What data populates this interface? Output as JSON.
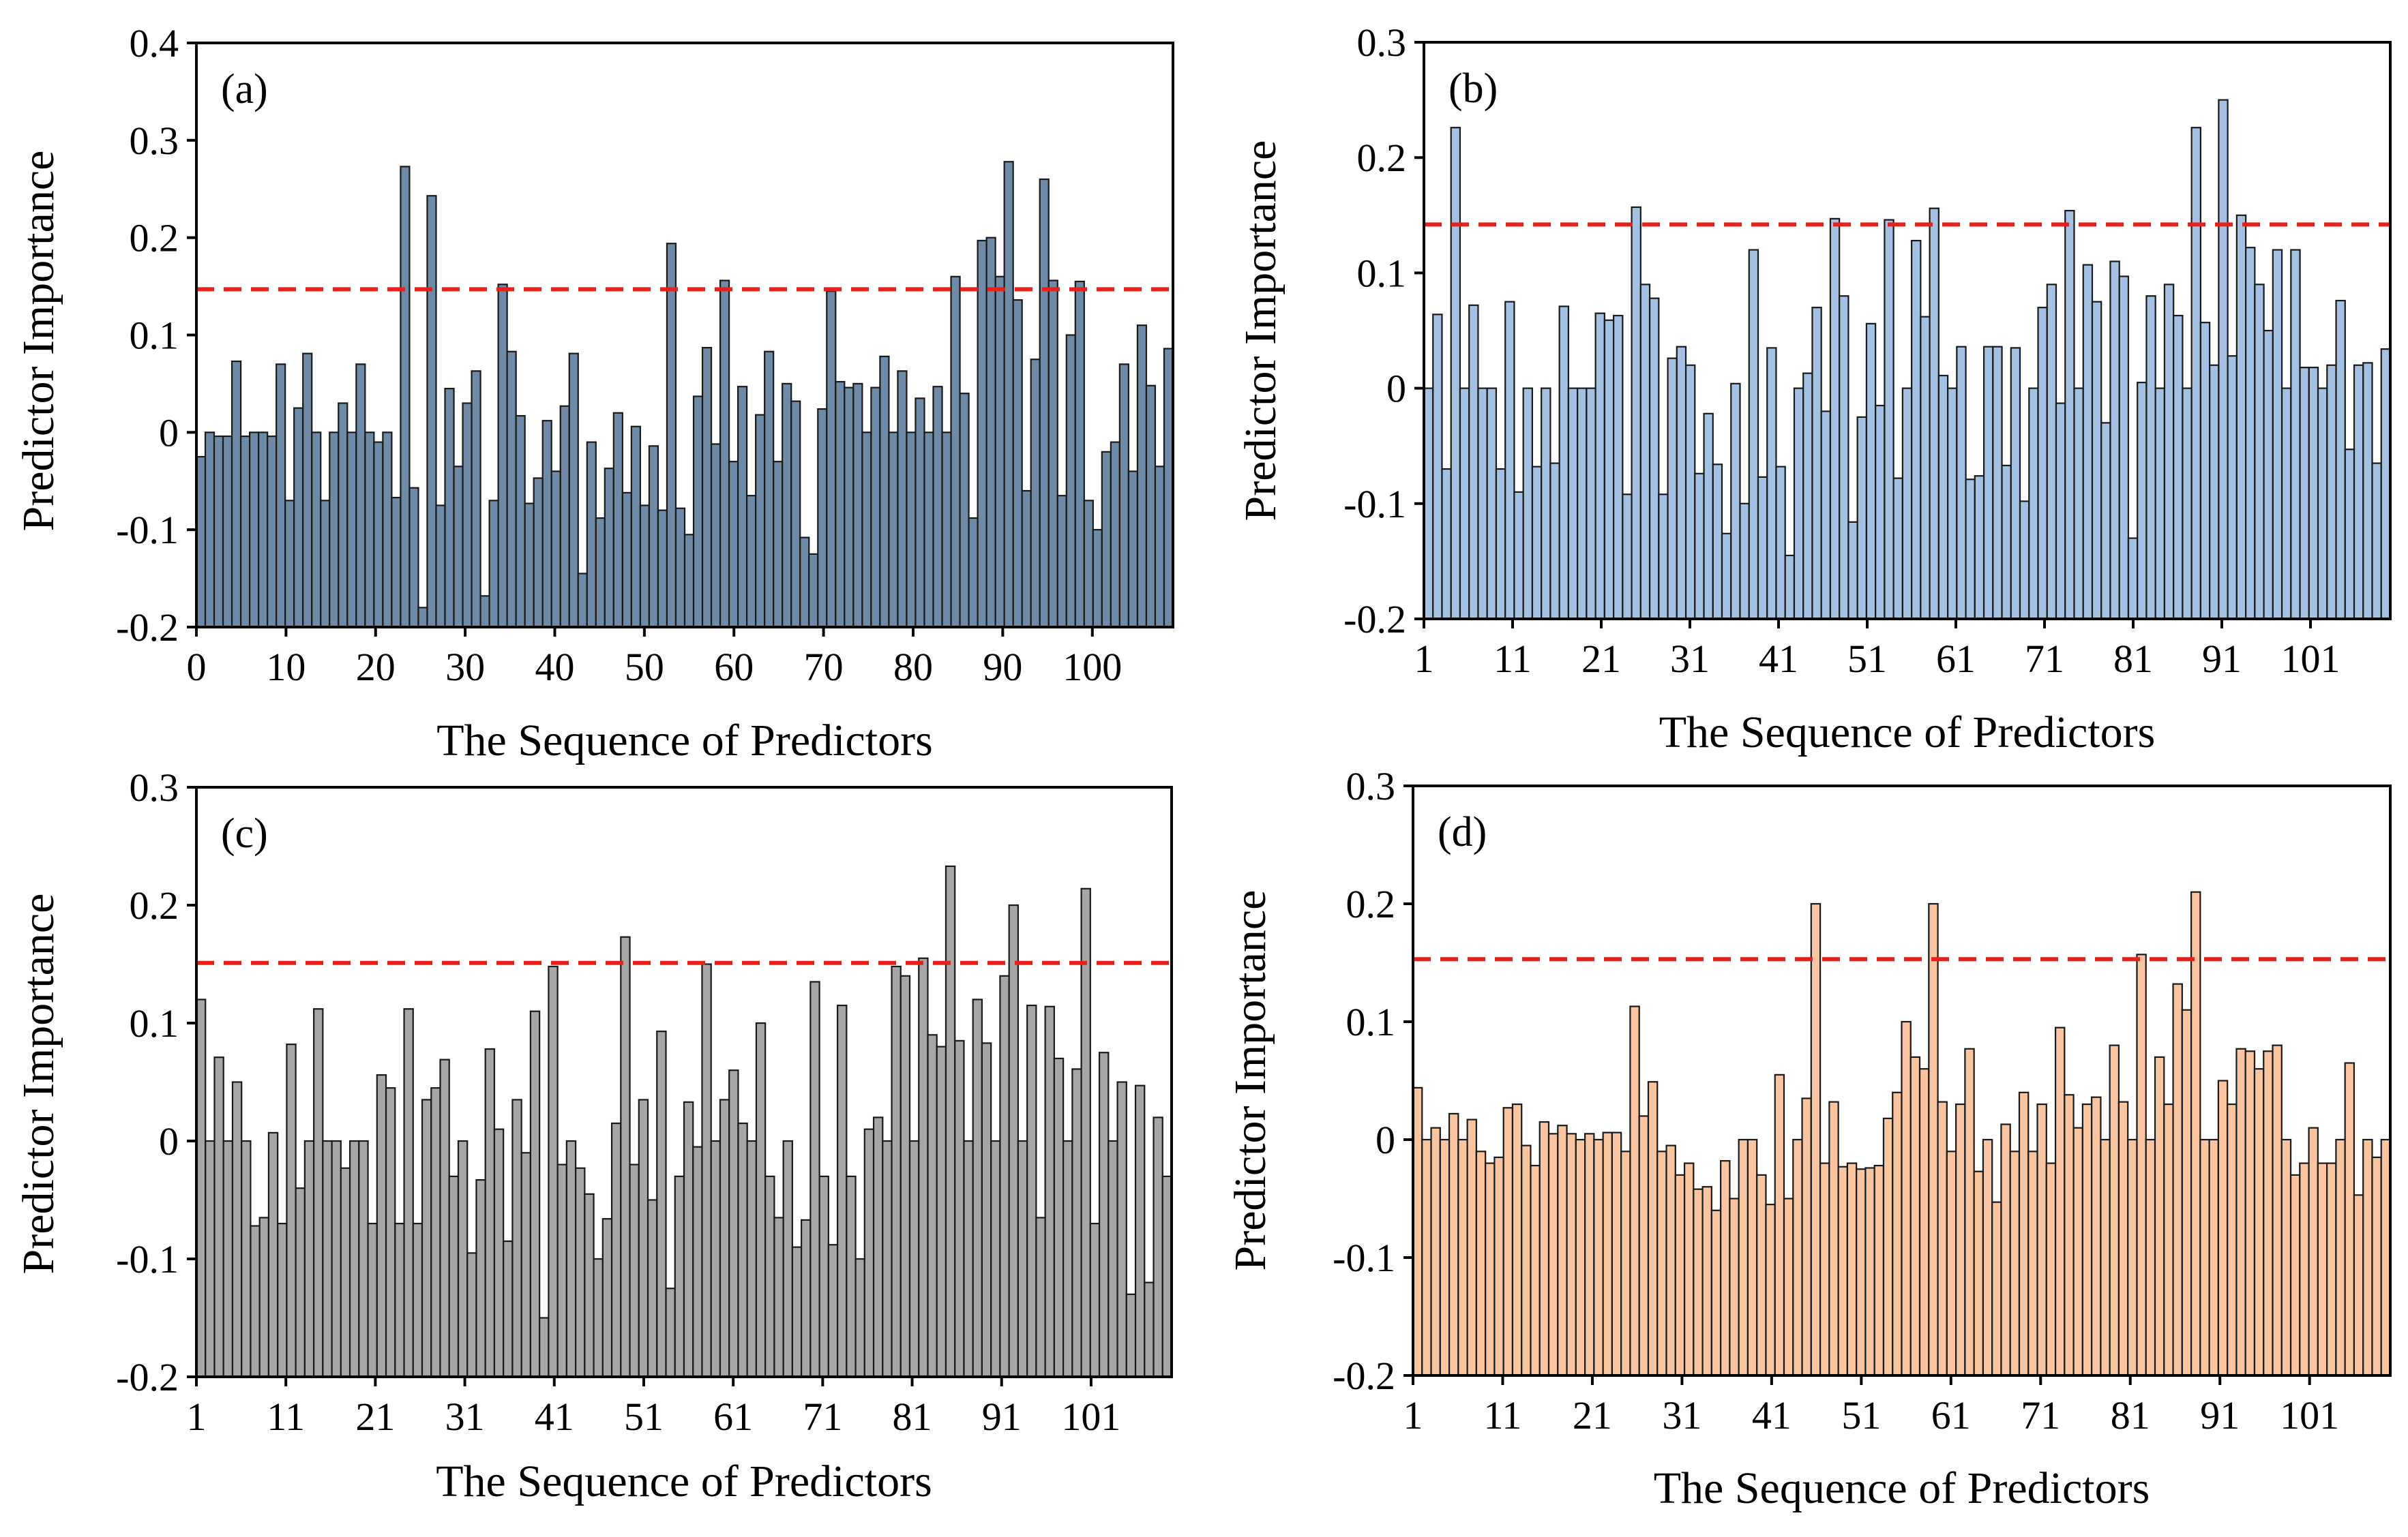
{
  "chart_data": [
    {
      "type": "bar",
      "panel_label": "(a)",
      "xlabel": "The Sequence of Predictors",
      "ylabel": "Predictor Importance",
      "ylim": [
        -0.2,
        0.4
      ],
      "yticks": [
        -0.2,
        -0.1,
        0,
        0.1,
        0.2,
        0.3,
        0.4
      ],
      "ytick_labels": [
        "-0.2",
        "-0.1",
        "0",
        "0.1",
        "0.2",
        "0.3",
        "0.4"
      ],
      "xrange": [
        0,
        109
      ],
      "xticks": [
        0,
        10,
        20,
        30,
        40,
        50,
        60,
        70,
        80,
        90,
        100
      ],
      "xtick_labels": [
        "0",
        "10",
        "20",
        "30",
        "40",
        "50",
        "60",
        "70",
        "80",
        "90",
        "100"
      ],
      "bar_color": "#6f8aa6",
      "threshold": 0.147,
      "threshold_color": "#e8201c",
      "values": [
        -0.025,
        0.0,
        -0.004,
        -0.004,
        0.073,
        -0.004,
        0.0,
        0.0,
        -0.004,
        0.07,
        -0.07,
        0.025,
        0.081,
        0.0,
        -0.07,
        0.0,
        0.03,
        0.0,
        0.07,
        0.0,
        -0.01,
        0.0,
        -0.067,
        0.273,
        -0.057,
        -0.18,
        0.243,
        -0.075,
        0.045,
        -0.035,
        0.03,
        0.063,
        -0.168,
        -0.07,
        0.152,
        0.083,
        0.017,
        -0.073,
        -0.047,
        0.012,
        -0.04,
        0.027,
        0.081,
        -0.145,
        -0.01,
        -0.088,
        -0.037,
        0.02,
        -0.062,
        0.006,
        -0.075,
        -0.014,
        -0.08,
        0.194,
        -0.078,
        -0.105,
        0.037,
        0.087,
        -0.012,
        0.156,
        -0.03,
        0.047,
        -0.065,
        0.018,
        0.083,
        -0.03,
        0.05,
        0.032,
        -0.108,
        -0.125,
        0.024,
        0.145,
        0.052,
        0.046,
        0.05,
        0.0,
        0.046,
        0.078,
        0.0,
        0.063,
        0.0,
        0.035,
        0.0,
        0.047,
        0.0,
        0.16,
        0.04,
        -0.088,
        0.197,
        0.2,
        0.16,
        0.278,
        0.136,
        -0.06,
        0.075,
        0.26,
        0.156,
        -0.065,
        0.1,
        0.155,
        -0.07,
        -0.1,
        -0.02,
        -0.01,
        0.07,
        -0.04,
        0.11,
        0.048,
        -0.035,
        0.086
      ]
    },
    {
      "type": "bar",
      "panel_label": "(b)",
      "xlabel": "The Sequence of Predictors",
      "ylabel": "Predictor Importance",
      "ylim": [
        -0.2,
        0.3
      ],
      "yticks": [
        -0.2,
        -0.1,
        0,
        0.1,
        0.2,
        0.3
      ],
      "ytick_labels": [
        "-0.2",
        "-0.1",
        "0",
        "0.1",
        "0.2",
        "0.3"
      ],
      "xrange": [
        1,
        110
      ],
      "xticks": [
        1,
        11,
        21,
        31,
        41,
        51,
        61,
        71,
        81,
        91,
        101
      ],
      "xtick_labels": [
        "1",
        "11",
        "21",
        "31",
        "41",
        "51",
        "61",
        "71",
        "81",
        "91",
        "101"
      ],
      "bar_color": "#a4c0e2",
      "threshold": 0.142,
      "threshold_color": "#e8201c",
      "values": [
        0.0,
        0.064,
        -0.07,
        0.226,
        0.0,
        0.072,
        0.0,
        0.0,
        -0.07,
        0.075,
        -0.09,
        0.0,
        -0.068,
        0.0,
        -0.065,
        0.071,
        0.0,
        0.0,
        0.0,
        0.065,
        0.059,
        0.063,
        -0.092,
        0.157,
        0.09,
        0.078,
        -0.092,
        0.026,
        0.036,
        0.02,
        -0.074,
        -0.022,
        -0.066,
        -0.126,
        0.004,
        -0.1,
        0.12,
        -0.077,
        0.035,
        -0.068,
        -0.145,
        0.0,
        0.013,
        0.07,
        -0.02,
        0.147,
        0.08,
        -0.116,
        -0.025,
        0.056,
        -0.015,
        0.146,
        -0.078,
        0.0,
        0.128,
        0.062,
        0.156,
        0.011,
        0.0,
        0.036,
        -0.079,
        -0.076,
        0.036,
        0.036,
        -0.067,
        0.035,
        -0.098,
        0.0,
        0.07,
        0.09,
        -0.013,
        0.154,
        0.0,
        0.107,
        0.075,
        -0.03,
        0.11,
        0.097,
        -0.13,
        0.005,
        0.08,
        0.0,
        0.09,
        0.063,
        0.0,
        0.226,
        0.057,
        0.02,
        0.25,
        0.028,
        0.15,
        0.122,
        0.09,
        0.05,
        0.12,
        0.0,
        0.12,
        0.018,
        0.018,
        0.0,
        0.02,
        0.076,
        -0.053,
        0.02,
        0.022,
        -0.065,
        0.034
      ]
    },
    {
      "type": "bar",
      "panel_label": "(c)",
      "xlabel": "The Sequence of Predictors",
      "ylabel": "Predictor Importance",
      "ylim": [
        -0.2,
        0.3
      ],
      "yticks": [
        -0.2,
        -0.1,
        0,
        0.1,
        0.2,
        0.3
      ],
      "ytick_labels": [
        "-0.2",
        "-0.1",
        "0",
        "0.1",
        "0.2",
        "0.3"
      ],
      "xrange": [
        1,
        110
      ],
      "xticks": [
        1,
        11,
        21,
        31,
        41,
        51,
        61,
        71,
        81,
        91,
        101
      ],
      "xtick_labels": [
        "1",
        "11",
        "21",
        "31",
        "41",
        "51",
        "61",
        "71",
        "81",
        "91",
        "101"
      ],
      "bar_color": "#a6a6a6",
      "threshold": 0.151,
      "threshold_color": "#e8201c",
      "values": [
        0.12,
        0.0,
        0.071,
        0.0,
        0.05,
        0.0,
        -0.072,
        -0.065,
        0.007,
        -0.07,
        0.082,
        -0.04,
        0.0,
        0.112,
        0.0,
        0.0,
        -0.023,
        0.0,
        0.0,
        -0.07,
        0.056,
        0.045,
        -0.07,
        0.112,
        -0.07,
        0.035,
        0.045,
        0.069,
        -0.03,
        0.0,
        -0.095,
        -0.033,
        0.078,
        0.01,
        -0.085,
        0.035,
        -0.01,
        0.11,
        -0.15,
        0.148,
        -0.02,
        0.0,
        -0.023,
        -0.045,
        -0.1,
        -0.066,
        0.015,
        0.173,
        -0.02,
        0.035,
        -0.05,
        0.093,
        -0.125,
        -0.03,
        0.033,
        -0.005,
        0.15,
        0.0,
        0.035,
        0.06,
        0.015,
        0.0,
        0.1,
        -0.03,
        -0.065,
        0.0,
        -0.09,
        -0.067,
        0.135,
        -0.03,
        -0.088,
        0.115,
        -0.03,
        -0.1,
        0.01,
        0.02,
        0.0,
        0.148,
        0.14,
        0.0,
        0.155,
        0.09,
        0.08,
        0.233,
        0.085,
        0.0,
        0.12,
        0.083,
        0.0,
        0.14,
        0.2,
        0.0,
        0.115,
        -0.065,
        0.114,
        0.07,
        0.0,
        0.061,
        0.214,
        -0.07,
        0.075,
        0.0,
        0.05,
        -0.13,
        0.047,
        -0.12,
        0.02,
        -0.03
      ]
    },
    {
      "type": "bar",
      "panel_label": "(d)",
      "xlabel": "The Sequence of Predictors",
      "ylabel": "Predictor Importance",
      "ylim": [
        -0.2,
        0.3
      ],
      "yticks": [
        -0.2,
        -0.1,
        0,
        0.1,
        0.2,
        0.3
      ],
      "ytick_labels": [
        "-0.2",
        "-0.1",
        "0",
        "0.1",
        "0.2",
        "0.3"
      ],
      "xrange": [
        1,
        110
      ],
      "xticks": [
        1,
        11,
        21,
        31,
        41,
        51,
        61,
        71,
        81,
        91,
        101
      ],
      "xtick_labels": [
        "1",
        "11",
        "21",
        "31",
        "41",
        "51",
        "61",
        "71",
        "81",
        "91",
        "101"
      ],
      "bar_color": "#f9c4a0",
      "threshold": 0.153,
      "threshold_color": "#e8201c",
      "values": [
        0.044,
        0.0,
        0.01,
        0.0,
        0.022,
        0.0,
        0.017,
        -0.01,
        -0.02,
        -0.015,
        0.027,
        0.03,
        -0.005,
        -0.022,
        0.015,
        0.005,
        0.012,
        0.005,
        0.0,
        0.005,
        0.0,
        0.006,
        0.006,
        -0.01,
        0.113,
        0.02,
        0.049,
        -0.01,
        -0.005,
        -0.03,
        -0.02,
        -0.042,
        -0.04,
        -0.06,
        -0.018,
        -0.05,
        0.0,
        0.0,
        -0.03,
        -0.055,
        0.055,
        -0.05,
        0.0,
        0.035,
        0.2,
        -0.02,
        0.032,
        -0.023,
        -0.02,
        -0.025,
        -0.024,
        -0.022,
        0.018,
        0.04,
        0.1,
        0.07,
        0.06,
        0.2,
        0.032,
        -0.01,
        0.03,
        0.077,
        -0.027,
        0.0,
        -0.053,
        0.013,
        -0.01,
        0.04,
        -0.01,
        0.03,
        -0.02,
        0.095,
        0.038,
        0.01,
        0.03,
        0.036,
        0.0,
        0.08,
        0.032,
        0.0,
        0.157,
        0.0,
        0.07,
        0.03,
        0.132,
        0.11,
        0.21,
        0.0,
        0.0,
        0.05,
        0.03,
        0.077,
        0.075,
        0.06,
        0.075,
        0.08,
        0.0,
        -0.03,
        -0.02,
        0.01,
        -0.02,
        -0.02,
        0.0,
        0.065,
        -0.047,
        0.0,
        -0.015,
        0.0
      ]
    }
  ]
}
